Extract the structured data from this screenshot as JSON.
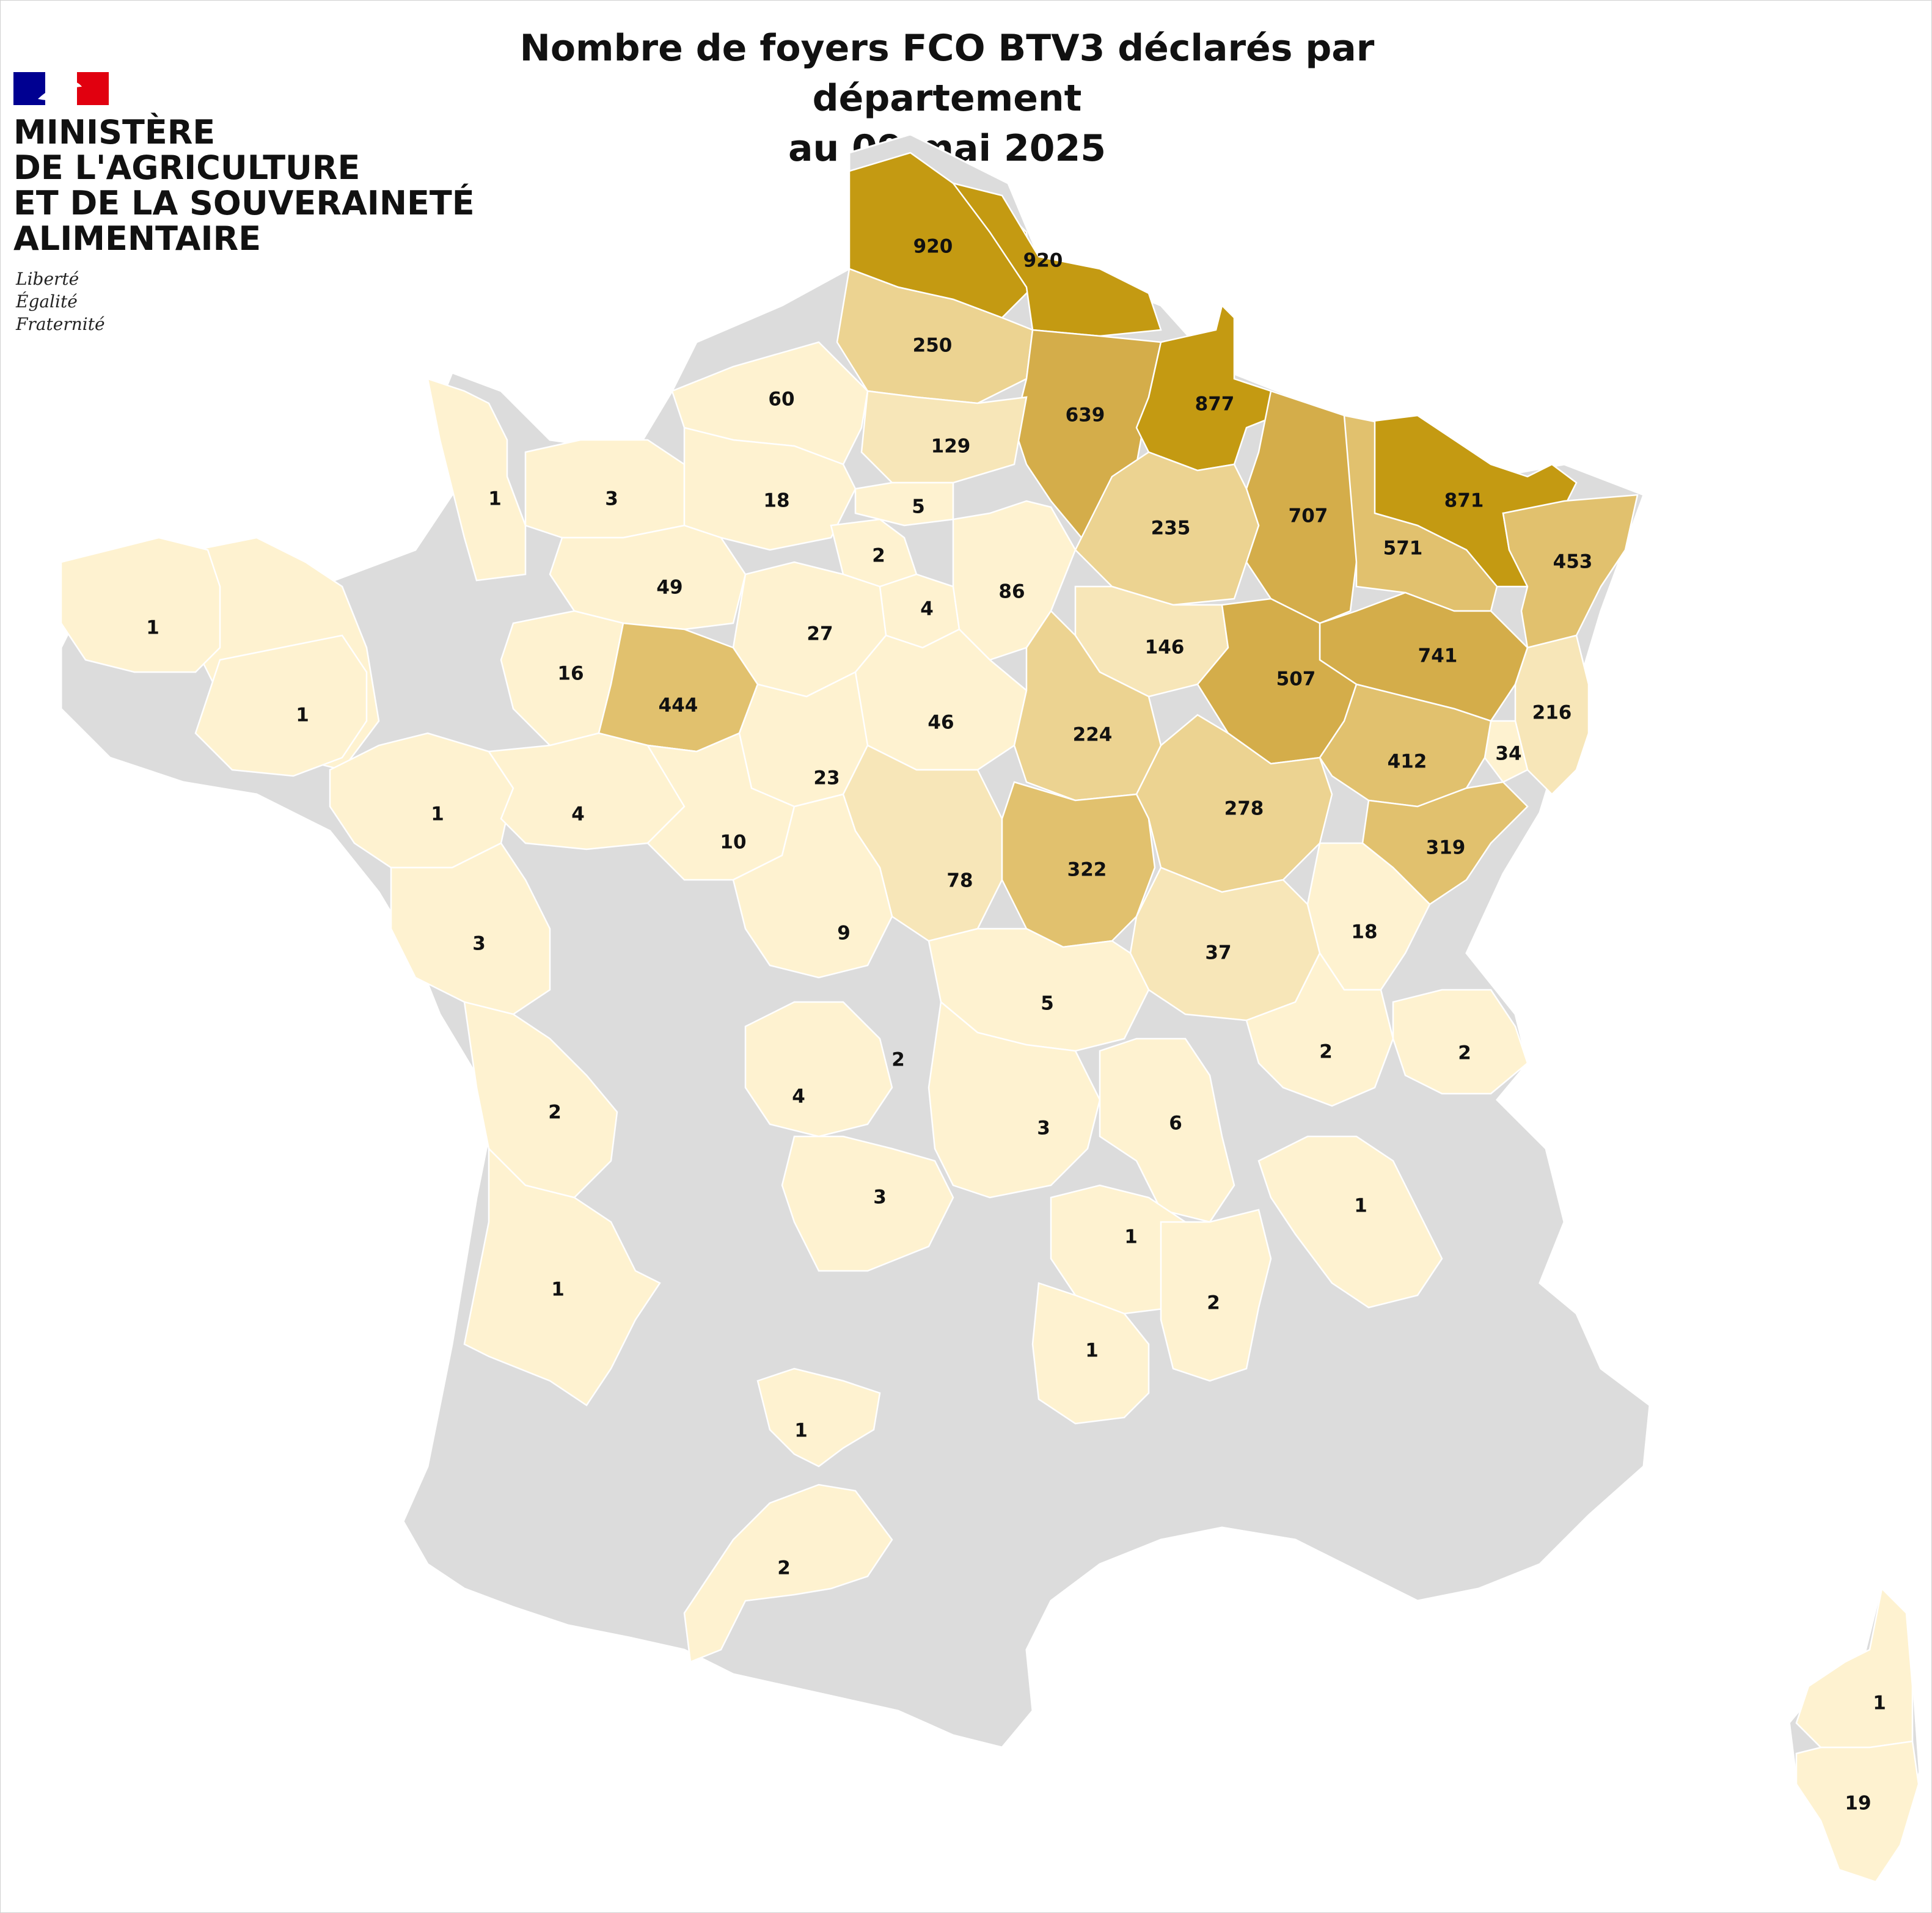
{
  "title": {
    "line1": "Nombre de foyers FCO BTV3 déclarés par département",
    "line2": "au 09 mai 2025"
  },
  "logo": {
    "name": "marianne-logo",
    "ministry_lines": [
      "MINISTÈRE",
      "DE L'AGRICULTURE",
      "ET DE LA SOUVERAINETÉ",
      "ALIMENTAIRE"
    ],
    "motto": [
      "Liberté",
      "Égalité",
      "Fraternité"
    ],
    "flag_colors": [
      "#000091",
      "#ffffff",
      "#e1000f"
    ]
  },
  "colors": {
    "no_data": "#dcdcdc",
    "scale": [
      "#fef2d0",
      "#f7e6b8",
      "#ecd391",
      "#e1c16e",
      "#d4ad4a",
      "#c49a12"
    ],
    "border": "#ffffff"
  },
  "map_values": [
    "920",
    "920",
    "250",
    "639",
    "877",
    "60",
    "129",
    "871",
    "1",
    "3",
    "18",
    "5",
    "707",
    "571",
    "453",
    "235",
    "2",
    "1",
    "49",
    "4",
    "86",
    "27",
    "146",
    "741",
    "507",
    "16",
    "444",
    "1",
    "216",
    "46",
    "34",
    "224",
    "412",
    "23",
    "1",
    "4",
    "10",
    "278",
    "319",
    "78",
    "322",
    "9",
    "3",
    "37",
    "18",
    "5",
    "2",
    "2",
    "2",
    "4",
    "3",
    "6",
    "2",
    "3",
    "1",
    "1",
    "2",
    "1",
    "1",
    "2",
    "1",
    "19"
  ]
}
